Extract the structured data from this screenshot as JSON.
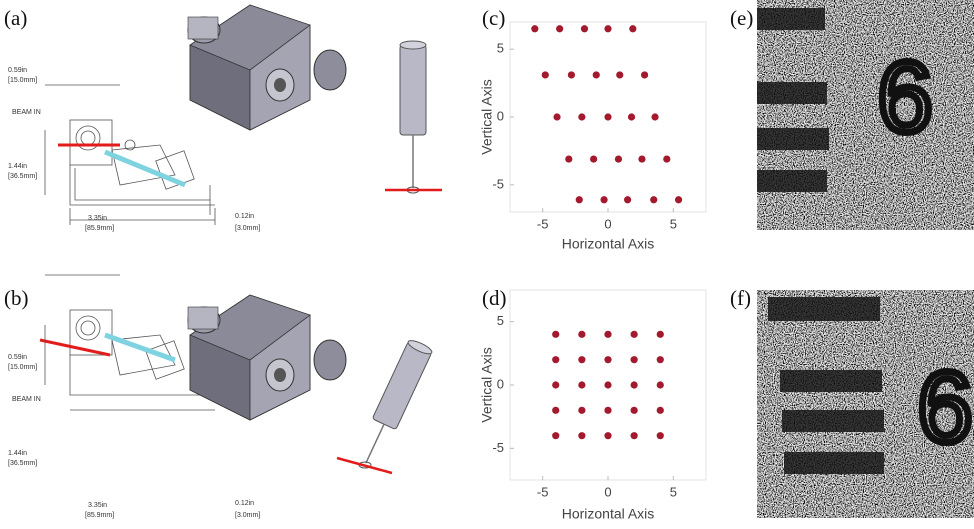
{
  "panels": [
    "(a)",
    "(b)",
    "(c)",
    "(d)",
    "(e)",
    "(f)"
  ],
  "drawings": [
    {
      "dimensions": [
        "0.59in",
        "[15.0mm]",
        "BEAM IN",
        "1.44in",
        "[36.5mm]",
        "3.35in",
        "[85.9mm]",
        "0.12in",
        "[3.0mm]"
      ]
    },
    {
      "dimensions": [
        "0.59in",
        "[15.0mm]",
        "BEAM IN",
        "1.44in",
        "[36.5mm]",
        "3.35in",
        "[85.9mm]",
        "0.12in",
        "[3.0mm]"
      ]
    }
  ],
  "images": [
    {
      "glyph": "6"
    },
    {
      "glyph": "6"
    }
  ],
  "chart_data": [
    {
      "type": "scatter",
      "xlabel": "Horizontal Axis",
      "ylabel": "Vertical Axis",
      "color": "#a31a2e",
      "xlim": [
        -7.5,
        7.5
      ],
      "ylim": [
        -7,
        7
      ],
      "xticks": [
        -5,
        0,
        5
      ],
      "yticks": [
        -5,
        0,
        5
      ],
      "x": [
        -5.6,
        -3.7,
        -1.8,
        0,
        1.9,
        -4.8,
        -2.8,
        -0.9,
        0.9,
        2.8,
        -3.9,
        -2,
        0,
        1.8,
        3.6,
        -3,
        -1.1,
        0.8,
        2.6,
        4.5,
        -2.2,
        -0.3,
        1.5,
        3.5,
        5.4
      ],
      "values": [
        6.5,
        6.5,
        6.5,
        6.5,
        6.5,
        3.1,
        3.1,
        3.1,
        3.1,
        3.1,
        0,
        0,
        0,
        0,
        0,
        -3.1,
        -3.1,
        -3.1,
        -3.1,
        -3.1,
        -6.1,
        -6.1,
        -6.1,
        -6.1,
        -6.1
      ]
    },
    {
      "type": "scatter",
      "xlabel": "Horizontal Axis",
      "ylabel": "Vertical Axis",
      "color": "#a31a2e",
      "xlim": [
        -7.5,
        7.5
      ],
      "ylim": [
        -7.5,
        7.5
      ],
      "xticks": [
        -5,
        0,
        5
      ],
      "yticks": [
        -5,
        0,
        5
      ],
      "x": [
        -4,
        -2,
        0,
        2,
        4,
        -4,
        -2,
        0,
        2,
        4,
        -4,
        -2,
        0,
        2,
        4,
        -4,
        -2,
        0,
        2,
        4,
        -4,
        -2,
        0,
        2,
        4
      ],
      "values": [
        4,
        4,
        4,
        4,
        4,
        2,
        2,
        2,
        2,
        2,
        0,
        0,
        0,
        0,
        0,
        -2,
        -2,
        -2,
        -2,
        -2,
        -4,
        -4,
        -4,
        -4,
        -4
      ]
    }
  ]
}
